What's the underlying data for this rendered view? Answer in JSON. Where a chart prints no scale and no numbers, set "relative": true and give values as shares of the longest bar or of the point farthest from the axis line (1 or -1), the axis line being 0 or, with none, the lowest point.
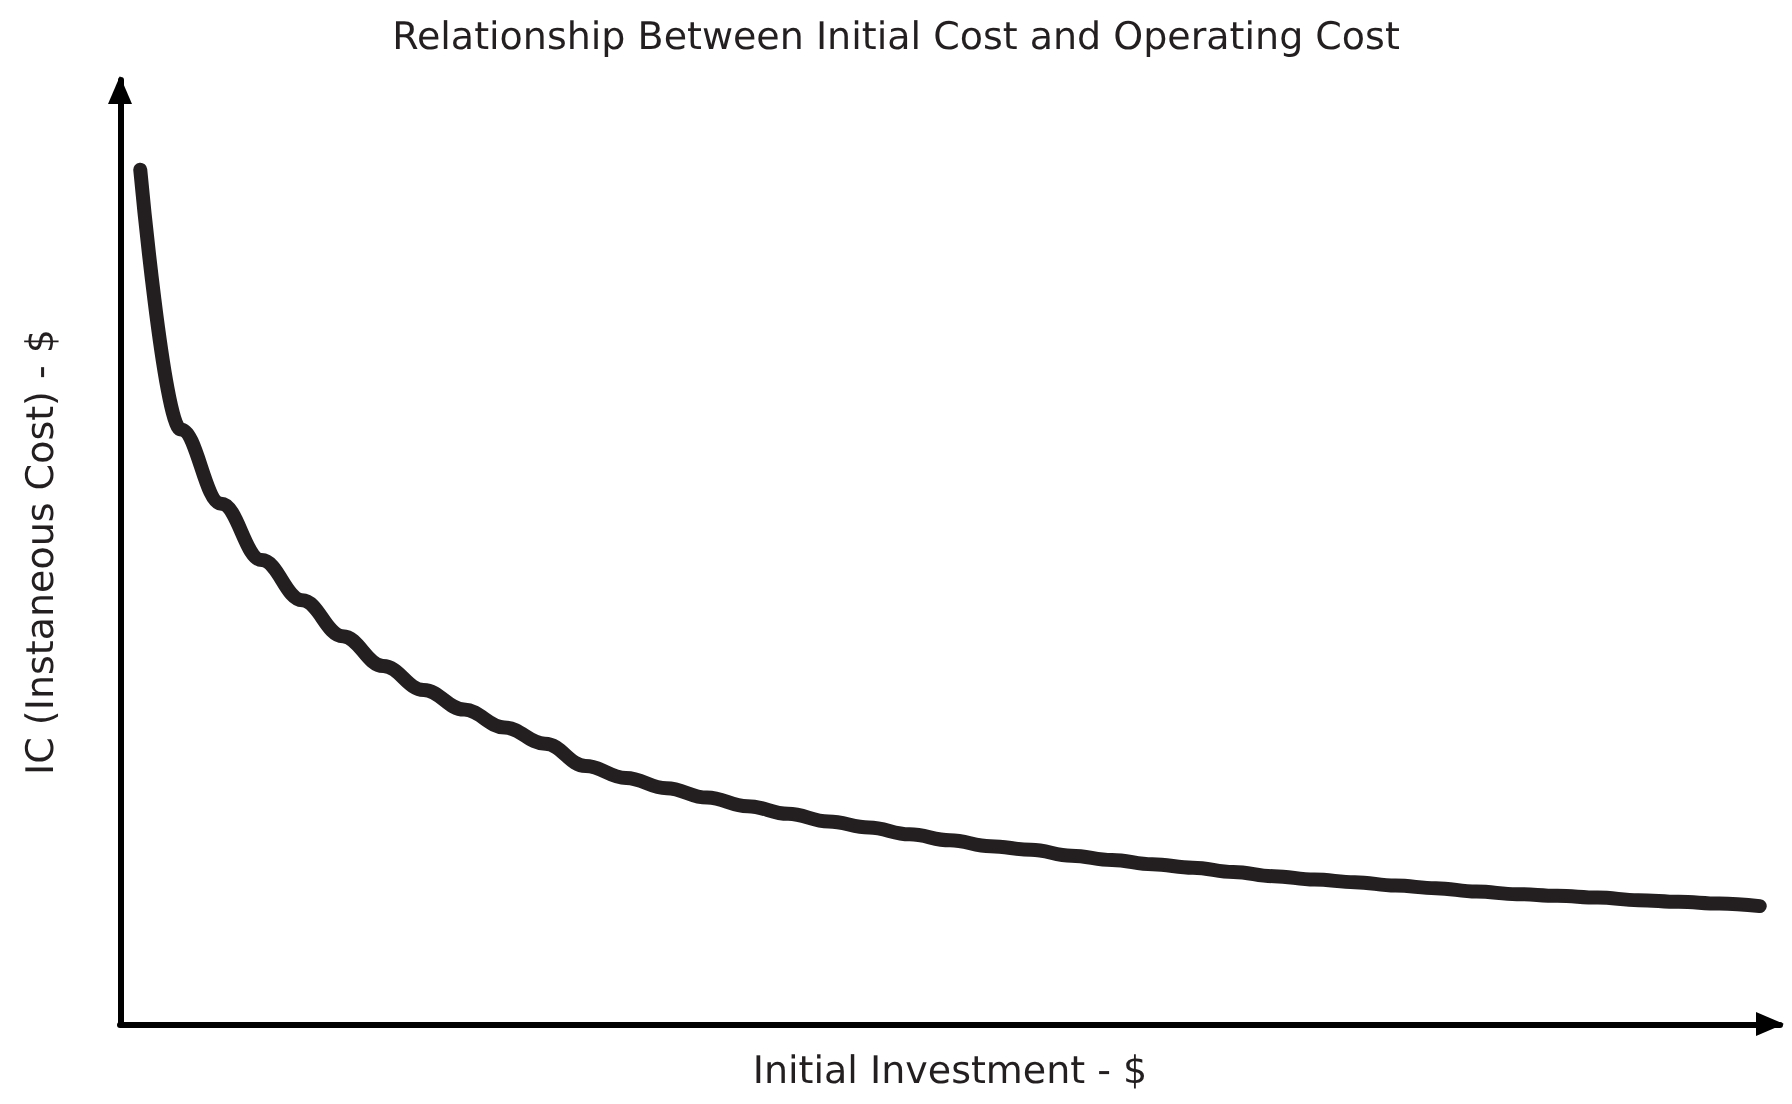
{
  "chart_data": {
    "type": "line",
    "title": "Relationship Between Initial Cost and Operating Cost",
    "xlabel": "Initial Investment - $",
    "ylabel": "IC (Instaneous Cost) - $",
    "relative": true,
    "line_style": "solid",
    "grid": false,
    "categories": [
      null,
      null,
      null,
      null,
      null,
      null,
      null,
      null,
      null,
      null,
      null,
      null,
      null,
      null,
      null,
      null,
      null,
      null,
      null,
      null,
      null,
      null,
      null,
      null,
      null,
      null,
      null,
      null,
      null,
      null,
      null,
      null,
      null,
      null,
      null,
      null,
      null,
      null,
      null,
      null,
      null
    ],
    "series": [
      {
        "color": "#231f20",
        "values": [
          1.0,
          0.696,
          0.609,
          0.543,
          0.496,
          0.454,
          0.419,
          0.391,
          0.368,
          0.347,
          0.328,
          0.302,
          0.288,
          0.276,
          0.265,
          0.255,
          0.246,
          0.237,
          0.23,
          0.222,
          0.215,
          0.208,
          0.204,
          0.197,
          0.192,
          0.187,
          0.183,
          0.178,
          0.173,
          0.169,
          0.166,
          0.162,
          0.159,
          0.155,
          0.152,
          0.15,
          0.148,
          0.145,
          0.143,
          0.141,
          0.138
        ]
      }
    ]
  }
}
